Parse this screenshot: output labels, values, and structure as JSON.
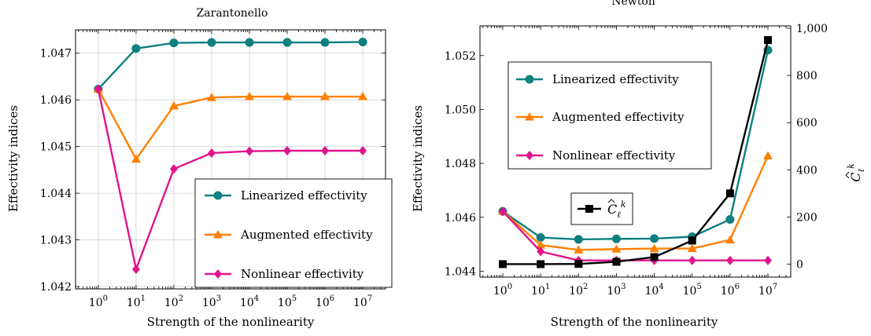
{
  "chart_data": [
    {
      "type": "line",
      "title": "Zarantonello",
      "xlabel": "Strength of the nonlinearity",
      "ylabel": "Effectivity indices",
      "x_scale": "log",
      "x": [
        1,
        10,
        100,
        1000,
        10000,
        100000,
        1000000,
        10000000
      ],
      "x_tick_labels": [
        "10^0",
        "10^1",
        "10^2",
        "10^3",
        "10^4",
        "10^5",
        "10^6",
        "10^7"
      ],
      "xlim": [
        0.25,
        40000000
      ],
      "ylim": [
        1.04195,
        1.0475
      ],
      "y_ticks": [
        1.042,
        1.043,
        1.044,
        1.045,
        1.046,
        1.047
      ],
      "y_tick_labels": [
        "1.042",
        "1.043",
        "1.044",
        "1.045",
        "1.046",
        "1.047"
      ],
      "grid": true,
      "legend_position": "bottom-right",
      "series": [
        {
          "name": "Linearized effectivity",
          "color": "#0e8080",
          "marker": "circle",
          "values": [
            1.04623,
            1.0471,
            1.04722,
            1.04723,
            1.04723,
            1.04723,
            1.04723,
            1.04724
          ]
        },
        {
          "name": "Augmented effectivity",
          "color": "#ff8000",
          "marker": "triangle",
          "values": [
            1.04623,
            1.04473,
            1.04587,
            1.04605,
            1.04607,
            1.04607,
            1.04607,
            1.04607
          ]
        },
        {
          "name": "Nonlinear effectivity",
          "color": "#e0148c",
          "marker": "diamond",
          "values": [
            1.04623,
            1.04237,
            1.04452,
            1.04486,
            1.0449,
            1.04491,
            1.04491,
            1.04491
          ]
        }
      ]
    },
    {
      "type": "line",
      "title": "Newton",
      "xlabel": "Strength of the nonlinearity",
      "ylabel": "Effectivity indices",
      "y2label": "Ĉ_ℓ^k̄",
      "x_scale": "log",
      "x": [
        1,
        10,
        100,
        1000,
        10000,
        100000,
        1000000,
        10000000
      ],
      "x_tick_labels": [
        "10^0",
        "10^1",
        "10^2",
        "10^3",
        "10^4",
        "10^5",
        "10^6",
        "10^7"
      ],
      "xlim": [
        0.25,
        40000000
      ],
      "ylim": [
        1.04378,
        1.0531
      ],
      "y_ticks": [
        1.044,
        1.046,
        1.048,
        1.05,
        1.052
      ],
      "y_tick_labels": [
        "1.044",
        "1.046",
        "1.048",
        "1.050",
        "1.052"
      ],
      "y2lim": [
        -55,
        1010
      ],
      "y2_ticks": [
        0,
        200,
        400,
        600,
        800,
        1000
      ],
      "y2_tick_labels": [
        "0",
        "200",
        "400",
        "600",
        "800",
        "1,000"
      ],
      "grid": false,
      "legend_position": "top-left",
      "series": [
        {
          "name": "Linearized effectivity",
          "color": "#0e8080",
          "marker": "circle",
          "axis": "left",
          "values": [
            1.04622,
            1.04525,
            1.04518,
            1.0452,
            1.04521,
            1.04528,
            1.04592,
            1.0522
          ]
        },
        {
          "name": "Augmented effectivity",
          "color": "#ff8000",
          "marker": "triangle",
          "axis": "left",
          "values": [
            1.04622,
            1.04497,
            1.04479,
            1.04482,
            1.04484,
            1.04484,
            1.04516,
            1.04828
          ]
        },
        {
          "name": "Nonlinear effectivity",
          "color": "#e0148c",
          "marker": "diamond",
          "axis": "left",
          "values": [
            1.04622,
            1.04473,
            1.0444,
            1.0444,
            1.0444,
            1.0444,
            1.0444,
            1.0444
          ]
        },
        {
          "name": "Ĉ_ℓ^k̄",
          "color": "#000000",
          "marker": "square",
          "axis": "right",
          "values": [
            0,
            0,
            1,
            10,
            30,
            100,
            300,
            950
          ]
        }
      ]
    }
  ]
}
